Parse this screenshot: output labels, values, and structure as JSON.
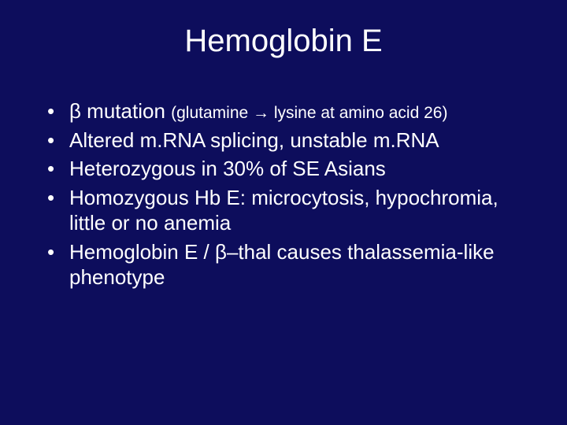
{
  "background_color": "#0d0d5c",
  "text_color": "#ffffff",
  "title": {
    "text": "Hemoglobin E",
    "fontsize": 40,
    "color": "#ffffff"
  },
  "bullets": [
    {
      "main": "β mutation ",
      "sub": "(glutamine → lysine at amino acid 26)"
    },
    {
      "main": "Altered m.RNA splicing, unstable m.RNA"
    },
    {
      "main": "Heterozygous in 30% of SE Asians"
    },
    {
      "main": "Homozygous Hb E: microcytosis, hypochromia, little or no anemia"
    },
    {
      "main": "Hemoglobin E / β–thal causes thalassemia-like phenotype"
    }
  ],
  "bullet_fontsize": 26,
  "sub_fontsize": 21
}
